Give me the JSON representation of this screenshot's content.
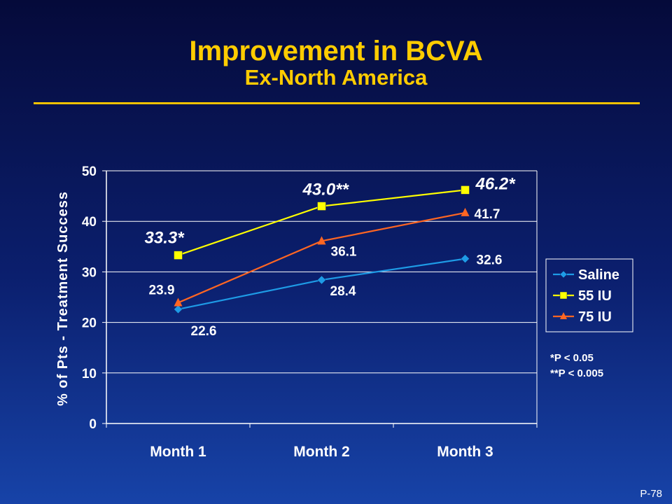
{
  "slide": {
    "title": "Improvement in BCVA",
    "subtitle": "Ex-North America",
    "number": "P-78"
  },
  "chart_data": {
    "type": "line",
    "categories": [
      "Month 1",
      "Month 2",
      "Month 3"
    ],
    "ylabel": "% of Pts - Treatment Success",
    "ylim": [
      0,
      50
    ],
    "yticks": [
      0,
      10,
      20,
      30,
      40,
      50
    ],
    "legend_position": "right",
    "series": [
      {
        "name": "Saline",
        "values": [
          22.6,
          28.4,
          32.6
        ],
        "labels": [
          "22.6",
          "28.4",
          "32.6"
        ],
        "color": "#1e9be6",
        "marker": "diamond"
      },
      {
        "name": "55 IU",
        "values": [
          33.3,
          43.0,
          46.2
        ],
        "labels": [
          "33.3*",
          "43.0**",
          "46.2*"
        ],
        "color": "#ffff00",
        "marker": "square"
      },
      {
        "name": "75 IU",
        "values": [
          23.9,
          36.1,
          41.7
        ],
        "labels": [
          "23.9",
          "36.1",
          "41.7"
        ],
        "color": "#ff6622",
        "marker": "triangle"
      }
    ],
    "footnotes": [
      "*P < 0.05",
      "**P < 0.005"
    ]
  }
}
